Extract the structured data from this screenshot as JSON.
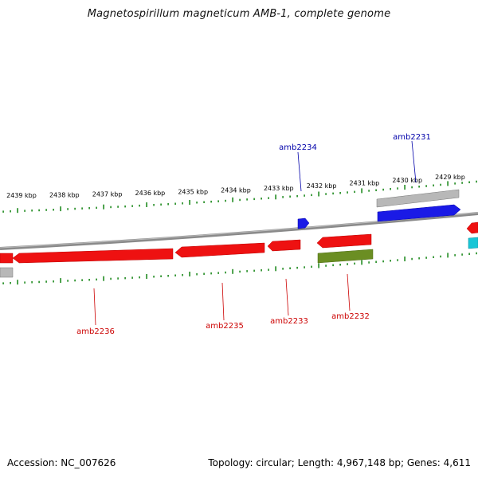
{
  "title": "Magnetospirillum magneticum AMB-1, complete genome",
  "footer": {
    "accession": "Accession: NC_007626",
    "summary": "Topology: circular; Length: 4,967,148 bp; Genes: 4,611"
  },
  "colors": {
    "backbone": "#8a8a8a",
    "ticks": "#1f8a1f",
    "gene_red": "#ee1111",
    "gene_blue": "#1a1ae6",
    "gene_grey": "#b8b8b8",
    "gene_olive": "#6b8e23",
    "gene_cyan": "#19c6d6",
    "label_red": "#cc0000",
    "label_blue": "#0000aa"
  },
  "ruler": {
    "labels": [
      "2439 kbp",
      "2438 kbp",
      "2437 kbp",
      "2436 kbp",
      "2435 kbp",
      "2434 kbp",
      "2433 kbp",
      "2432 kbp",
      "2431 kbp",
      "2430 kbp",
      "2429 kbp"
    ]
  },
  "genes": [
    {
      "name": "amb2236",
      "color": "red"
    },
    {
      "name": "amb2235",
      "color": "red"
    },
    {
      "name": "amb2234",
      "color": "blue"
    },
    {
      "name": "amb2233",
      "color": "red"
    },
    {
      "name": "amb2232",
      "color": "red"
    },
    {
      "name": "amb2231",
      "color": "blue"
    }
  ]
}
